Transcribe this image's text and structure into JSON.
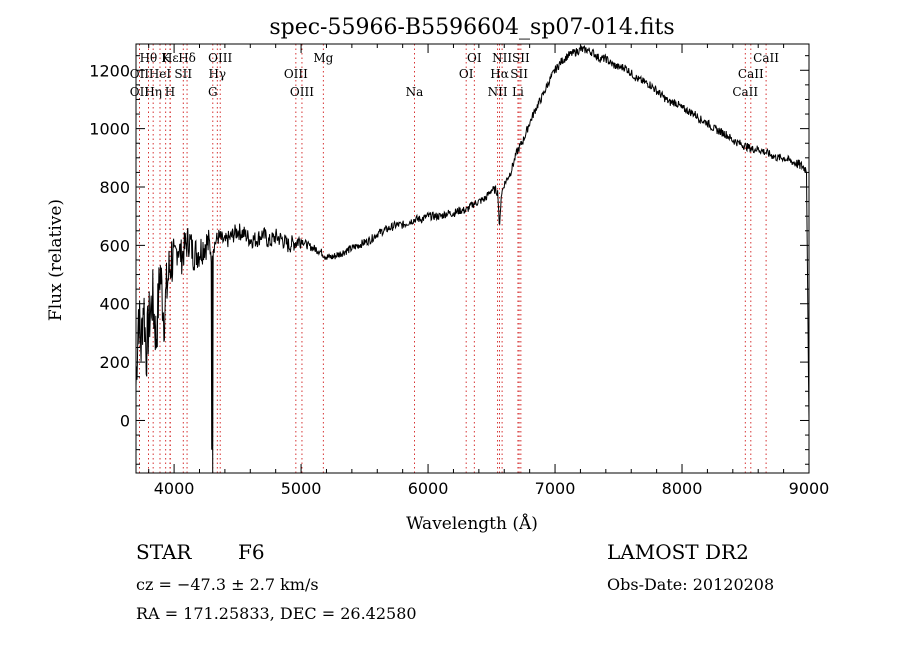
{
  "chart_data": {
    "type": "line",
    "title": "spec-55966-B5596604_sp07-014.fits",
    "xlabel": "Wavelength (Å)",
    "ylabel": "Flux (relative)",
    "xlim": [
      3700,
      9000
    ],
    "ylim": [
      -180,
      1290
    ],
    "xticks": [
      4000,
      5000,
      6000,
      7000,
      8000,
      9000
    ],
    "yticks": [
      0,
      200,
      400,
      600,
      800,
      1000,
      1200
    ],
    "grid": false,
    "colors": {
      "spectrum": "#000000",
      "line_markers": "#cc0000",
      "axes": "#000000"
    },
    "series": [
      {
        "x": [
          3700,
          3720,
          3740,
          3760,
          3780,
          3800,
          3830,
          3860,
          3890,
          3920,
          3950,
          3980,
          4000,
          4030,
          4060,
          4090,
          4120,
          4150,
          4200,
          4250,
          4300,
          4350,
          4400,
          4450,
          4500,
          4550,
          4600,
          4650,
          4700,
          4750,
          4800,
          4850,
          4900,
          4950,
          5000,
          5050,
          5100,
          5150,
          5200,
          5250,
          5300,
          5350,
          5400,
          5450,
          5500,
          5550,
          5600,
          5650,
          5700,
          5750,
          5800,
          5850,
          5900,
          5950,
          6000,
          6050,
          6100,
          6150,
          6200,
          6250,
          6300,
          6350,
          6400,
          6450,
          6500,
          6530,
          6550,
          6563,
          6575,
          6600,
          6650,
          6700,
          6750,
          6800,
          6850,
          6900,
          6950,
          7000,
          7050,
          7100,
          7150,
          7200,
          7250,
          7300,
          7350,
          7400,
          7450,
          7500,
          7550,
          7600,
          7650,
          7700,
          7750,
          7800,
          7850,
          7900,
          7950,
          8000,
          8050,
          8100,
          8150,
          8200,
          8250,
          8300,
          8350,
          8400,
          8450,
          8500,
          8550,
          8600,
          8650,
          8700,
          8750,
          8800,
          8850,
          8900,
          8950,
          8980,
          9000
        ],
        "y": [
          120,
          380,
          250,
          420,
          230,
          330,
          420,
          280,
          520,
          360,
          480,
          560,
          540,
          600,
          560,
          600,
          620,
          570,
          580,
          610,
          590,
          630,
          610,
          630,
          650,
          640,
          620,
          620,
          640,
          610,
          630,
          620,
          600,
          610,
          620,
          600,
          590,
          580,
          560,
          560,
          570,
          580,
          590,
          600,
          610,
          620,
          640,
          650,
          660,
          670,
          670,
          680,
          690,
          690,
          700,
          700,
          700,
          710,
          710,
          720,
          720,
          740,
          750,
          760,
          790,
          790,
          780,
          650,
          770,
          810,
          850,
          920,
          960,
          1020,
          1070,
          1110,
          1160,
          1200,
          1230,
          1250,
          1260,
          1270,
          1270,
          1260,
          1240,
          1240,
          1220,
          1210,
          1210,
          1190,
          1170,
          1160,
          1150,
          1130,
          1110,
          1090,
          1090,
          1070,
          1060,
          1050,
          1030,
          1020,
          1000,
          990,
          980,
          960,
          950,
          940,
          930,
          930,
          920,
          910,
          900,
          900,
          890,
          880,
          870,
          860,
          -20
        ]
      }
    ],
    "line_labels": [
      {
        "label": "Hδ",
        "x": 4102,
        "row": 0
      },
      {
        "label": "Hε",
        "x": 3970,
        "row": 0
      },
      {
        "label": "K",
        "x": 3934,
        "row": 0
      },
      {
        "label": "Hθ",
        "x": 3798,
        "row": 0
      },
      {
        "label": "OIII",
        "x": 4363,
        "row": 0
      },
      {
        "label": "Mg",
        "x": 5175,
        "row": 0
      },
      {
        "label": "OI",
        "x": 6364,
        "row": 0
      },
      {
        "label": "NII",
        "x": 6583,
        "row": 0
      },
      {
        "label": "SII",
        "x": 6731,
        "row": 0
      },
      {
        "label": "CaII",
        "x": 8662,
        "row": 0
      },
      {
        "label": "OII",
        "x": 3727,
        "row": 1
      },
      {
        "label": "HeI",
        "x": 3889,
        "row": 1
      },
      {
        "label": "SII",
        "x": 4072,
        "row": 1
      },
      {
        "label": "Hγ",
        "x": 4340,
        "row": 1
      },
      {
        "label": "OIII",
        "x": 4959,
        "row": 1
      },
      {
        "label": "OI",
        "x": 6300,
        "row": 1
      },
      {
        "label": "Hα",
        "x": 6563,
        "row": 1
      },
      {
        "label": "SII",
        "x": 6717,
        "row": 1
      },
      {
        "label": "CaII",
        "x": 8542,
        "row": 1
      },
      {
        "label": "OII",
        "x": 3727,
        "row": 2
      },
      {
        "label": "Hη",
        "x": 3835,
        "row": 2
      },
      {
        "label": "H",
        "x": 3968,
        "row": 2
      },
      {
        "label": "G",
        "x": 4305,
        "row": 2
      },
      {
        "label": "OIII",
        "x": 5007,
        "row": 2
      },
      {
        "label": "Na",
        "x": 5893,
        "row": 2
      },
      {
        "label": "NII",
        "x": 6548,
        "row": 2
      },
      {
        "label": "Li",
        "x": 6708,
        "row": 2
      },
      {
        "label": "CaII",
        "x": 8498,
        "row": 2
      }
    ],
    "marker_lines_x": [
      3727,
      3798,
      3835,
      3889,
      3934,
      3968,
      3970,
      4072,
      4102,
      4305,
      4340,
      4363,
      4959,
      5007,
      5175,
      5893,
      6300,
      6364,
      6548,
      6563,
      6583,
      6708,
      6717,
      6731,
      8498,
      8542,
      8662
    ]
  },
  "info": {
    "class_label": "STAR",
    "subclass": "F6",
    "cz": "cz = −47.3 ± 2.7 km/s",
    "coords": "RA = 171.25833, DEC =  26.42580",
    "survey": "LAMOST DR2",
    "obs_date": "Obs-Date: 20120208"
  }
}
